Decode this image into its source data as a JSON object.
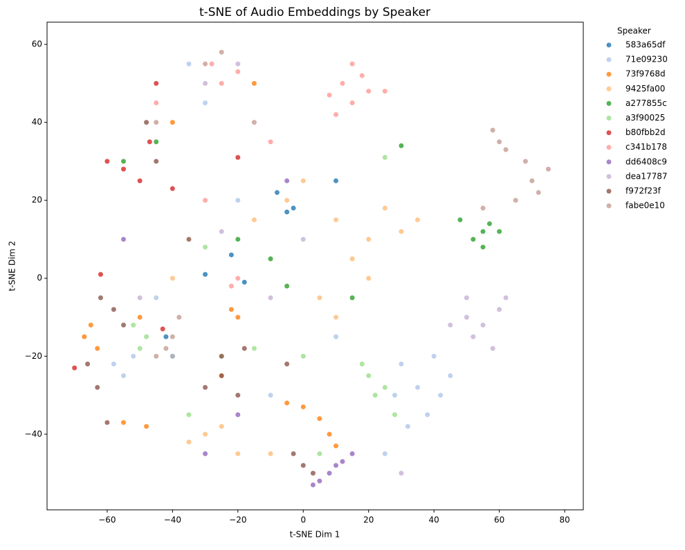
{
  "chart_data": {
    "type": "scatter",
    "title": "t-SNE of Audio Embeddings by Speaker",
    "xlabel": "t-SNE Dim 1",
    "ylabel": "t-SNE Dim 2",
    "legend_title": "Speaker",
    "legend": "outside-right",
    "xlim": [
      -78.4,
      85.7
    ],
    "ylim": [
      -59.4,
      65.7
    ],
    "xticks": [
      {
        "value": -60,
        "label": "−60"
      },
      {
        "value": -40,
        "label": "−40"
      },
      {
        "value": -20,
        "label": "−20"
      },
      0,
      20,
      40,
      60,
      80
    ],
    "yticks": [
      {
        "value": -40,
        "label": "−40"
      },
      {
        "value": -20,
        "label": "−20"
      },
      0,
      20,
      40,
      60
    ],
    "series": [
      {
        "name": "583a65df",
        "color": "#1f77b4",
        "x": [
          -5,
          -3,
          -22,
          -30,
          -18,
          -8,
          -42,
          10
        ],
        "values": [
          17,
          18,
          6,
          1,
          -1,
          22,
          -15,
          25
        ]
      },
      {
        "name": "71e09230",
        "color": "#aec7e8",
        "x": [
          30,
          35,
          40,
          38,
          32,
          42,
          45,
          28,
          -58,
          -55,
          -52,
          -30,
          -20,
          -45,
          10,
          -10,
          25,
          -35
        ],
        "values": [
          -22,
          -28,
          -20,
          -35,
          -38,
          -30,
          -25,
          -30,
          -22,
          -25,
          -20,
          45,
          20,
          -5,
          -15,
          -30,
          -45,
          55
        ]
      },
      {
        "name": "73f9768d",
        "color": "#ff7f0e",
        "x": [
          -65,
          -67,
          -63,
          0,
          5,
          8,
          10,
          -5,
          -20,
          -22,
          -48,
          -55,
          -40,
          -15,
          -50,
          -25
        ],
        "values": [
          -12,
          -15,
          -18,
          -33,
          -36,
          -40,
          -43,
          -32,
          -10,
          -8,
          -38,
          -37,
          40,
          50,
          -10,
          -25
        ]
      },
      {
        "name": "9425fa00",
        "color": "#ffbb78",
        "x": [
          10,
          20,
          25,
          30,
          15,
          20,
          5,
          -5,
          10,
          0,
          -30,
          -25,
          -35,
          -20,
          -40,
          -10,
          35,
          -15
        ],
        "values": [
          15,
          10,
          18,
          12,
          5,
          0,
          -5,
          20,
          -10,
          25,
          -40,
          -38,
          -42,
          -45,
          0,
          -45,
          15,
          15
        ]
      },
      {
        "name": "a277855c",
        "color": "#2ca02c",
        "x": [
          55,
          57,
          52,
          60,
          55,
          48,
          -45,
          -55,
          -20,
          -10,
          -5,
          30,
          -40,
          15
        ],
        "values": [
          12,
          14,
          10,
          12,
          8,
          15,
          35,
          30,
          10,
          5,
          -2,
          34,
          -20,
          -5
        ]
      },
      {
        "name": "a3f90025",
        "color": "#98df8a",
        "x": [
          20,
          22,
          25,
          18,
          28,
          -52,
          -48,
          -50,
          -25,
          -15,
          0,
          -30,
          25,
          -35,
          5
        ],
        "values": [
          -25,
          -30,
          -28,
          -22,
          -35,
          -12,
          -15,
          -18,
          -20,
          -18,
          -20,
          8,
          31,
          -35,
          -45
        ]
      },
      {
        "name": "b80fbb2d",
        "color": "#d62728",
        "x": [
          -45,
          -47,
          -50,
          -60,
          -40,
          -55,
          -20,
          -62,
          -43,
          -70
        ],
        "values": [
          50,
          35,
          25,
          30,
          23,
          28,
          31,
          1,
          -13,
          -23
        ]
      },
      {
        "name": "c341b178",
        "color": "#ff9896",
        "x": [
          12,
          15,
          18,
          10,
          20,
          25,
          8,
          15,
          -28,
          -25,
          -20,
          -22,
          -20,
          -30,
          -45,
          -10
        ],
        "values": [
          50,
          45,
          52,
          42,
          48,
          48,
          47,
          55,
          55,
          50,
          53,
          -2,
          0,
          20,
          45,
          35
        ]
      },
      {
        "name": "dd6408c9",
        "color": "#9467bd",
        "x": [
          5,
          8,
          10,
          12,
          3,
          -20,
          -55,
          -30,
          -5,
          15
        ],
        "values": [
          -52,
          -50,
          -48,
          -47,
          -53,
          -35,
          10,
          -45,
          25,
          -45
        ]
      },
      {
        "name": "dea17787",
        "color": "#c5b0d5",
        "x": [
          50,
          55,
          60,
          52,
          58,
          62,
          45,
          50,
          -40,
          -30,
          -20,
          -10,
          0,
          -25,
          -50,
          30
        ],
        "values": [
          -10,
          -12,
          -8,
          -15,
          -18,
          -5,
          -12,
          -5,
          -20,
          50,
          55,
          -5,
          10,
          12,
          -5,
          -50
        ]
      },
      {
        "name": "f972f23f",
        "color": "#8c564b",
        "x": [
          -58,
          -62,
          -55,
          -66,
          -63,
          -30,
          -25,
          -20,
          -18,
          -5,
          -3,
          0,
          3,
          -45,
          -48,
          -35,
          -25,
          -60
        ],
        "values": [
          -8,
          -5,
          -12,
          -22,
          -28,
          -28,
          -25,
          -30,
          -18,
          -22,
          -45,
          -48,
          -50,
          30,
          40,
          10,
          -20,
          -37
        ]
      },
      {
        "name": "fabe0e10",
        "color": "#c49c94",
        "x": [
          70,
          68,
          72,
          65,
          75,
          60,
          58,
          62,
          55,
          -40,
          -42,
          -38,
          -45,
          -30,
          -25,
          -45,
          -15
        ],
        "values": [
          25,
          30,
          22,
          20,
          28,
          35,
          38,
          33,
          18,
          -15,
          -18,
          -10,
          -20,
          55,
          58,
          40,
          40
        ]
      }
    ]
  }
}
